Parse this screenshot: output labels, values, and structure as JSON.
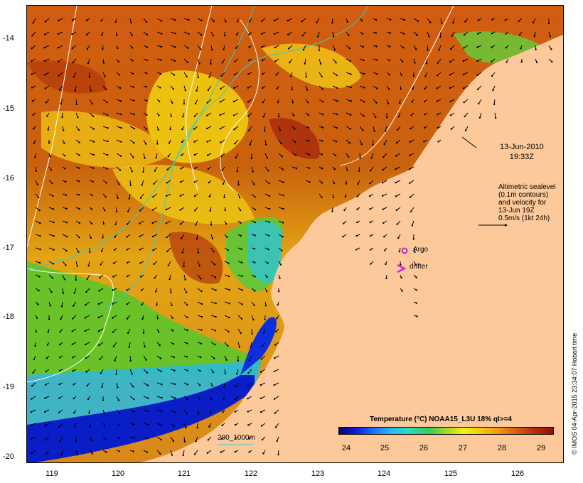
{
  "date_label": [
    "13-Jun-2010",
    "19:33Z"
  ],
  "altimetric_note": [
    "Altimetric sealevel",
    "(0.1m contours)",
    "and velocity for",
    "13-Jun 19Z",
    "0.5m/s (1kt 24h)"
  ],
  "argo_label": "Argo",
  "drifter_label": "drifter",
  "depth_scale_label": "200_1000m",
  "legend_title": "Temperature (°C) NOAA15_L3U 18% ql>=4",
  "colorbar_ticks": [
    "24",
    "25",
    "26",
    "27",
    "28",
    "29"
  ],
  "lat_ticks": [
    "-14",
    "-15",
    "-16",
    "-17",
    "-18",
    "-19",
    "-20"
  ],
  "lon_ticks": [
    "119",
    "120",
    "121",
    "122",
    "123",
    "124",
    "125",
    "126"
  ],
  "credit": "© IMOS 04-Apr-2015 23:34:07 Hobart time",
  "colors": {
    "land": "#fdc99a",
    "argo_marker": "#cc22cc",
    "drifter_marker": "#e020e0",
    "sealevel_contour": "#ffffff",
    "bathymetry_contour": "#33cccc"
  }
}
